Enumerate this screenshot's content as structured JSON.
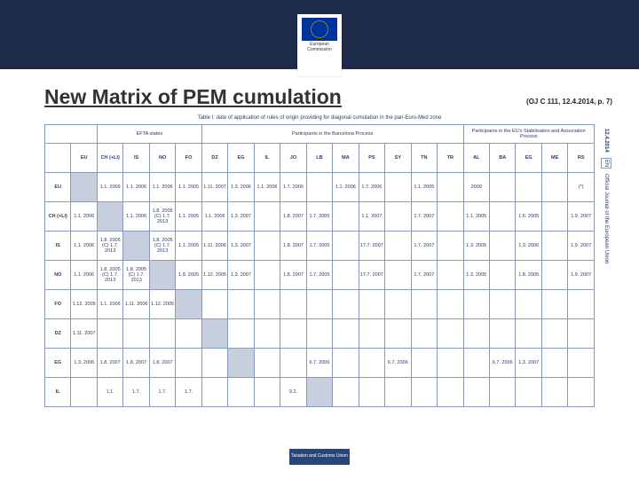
{
  "header": {
    "logo_line1": "European",
    "logo_line2": "Commission",
    "banner_bg": "#1e2a4a"
  },
  "title": {
    "text": "New Matrix of PEM cumulation",
    "reference": "(OJ C 111, 12.4.2014, p. 7)"
  },
  "caption": "Table I: date of application of rules of origin providing for diagonal cumulation in the pan-Euro-Med zone",
  "groups": {
    "g1": "EFTA states",
    "g2": "Participants in the Barcelona Process",
    "g3": "Participants in the EU's Stabilisation and Association Process"
  },
  "side": {
    "date": "12.4.2014",
    "box": "EN",
    "journal": "Official Journal of the European Union"
  },
  "columns": [
    "",
    "EU",
    "CH (+LI)",
    "IS",
    "NO",
    "FO",
    "DZ",
    "EG",
    "IL",
    "JO",
    "LB",
    "MA",
    "PS",
    "SY",
    "TN",
    "TR",
    "AL",
    "BA",
    "EG",
    "ME",
    "RS"
  ],
  "rows": [
    {
      "head": "EU",
      "cells": [
        "shade",
        "1.1. 2006",
        "1.1. 2006",
        "1.1. 2006",
        "1.1. 2005",
        "1.11. 2007",
        "1.3. 2006",
        "1.1. 2006",
        "1.7. 2006",
        "",
        "1.1. 2006",
        "1.7. 2006",
        "",
        "1.1. 2005",
        "",
        "2009",
        "",
        "",
        "",
        "(*)",
        ""
      ]
    },
    {
      "head": "CH (+LI)",
      "cells": [
        "1.1. 2006",
        "shade",
        "1.1. 2006",
        "1.8. 2005 (C) 1.7. 2013",
        "1.1. 2005",
        "1.1. 2006",
        "1.3. 2007",
        "",
        "1.8. 2007",
        "1.7. 2005",
        "",
        "1.1. 2007",
        "",
        "1.7. 2007",
        "",
        "1.1. 2005",
        "",
        "1.6. 2005",
        "",
        "1.9. 2007",
        "",
        "",
        "(C) 1.5. 2012"
      ]
    },
    {
      "head": "IS",
      "cells": [
        "1.1. 2006",
        "1.8. 2005 (C) 1.7. 2013",
        "shade",
        "1.8. 2005 (C) 1.7. 2013",
        "1.1. 2005",
        "1.11. 2006",
        "1.3. 2007",
        "",
        "1.8. 2007",
        "1.7. 2005",
        "",
        "17.7. 2007",
        "",
        "1.7. 2007",
        "",
        "1.3. 2005",
        "",
        "1.3. 2006",
        "",
        "1.9. 2007",
        "",
        "",
        "(C) 1.10. 2013"
      ]
    },
    {
      "head": "NO",
      "cells": [
        "1.1. 2006",
        "1.8. 2005 (C) 1.7. 2013",
        "1.8. 2005 (C) 1.7. 2013",
        "shade",
        "1.8. 2005",
        "1.12. 2005",
        "1.3. 2007",
        "",
        "1.8. 2007",
        "1.7. 2005",
        "",
        "17.7. 2007",
        "",
        "1.7. 2007",
        "",
        "1.3. 2005",
        "",
        "1.8. 2005",
        "",
        "1.9. 2007",
        "",
        "",
        "(C) 1.6. 2013"
      ]
    },
    {
      "head": "FO",
      "cells": [
        "1.12. 2005",
        "1.1. 2006",
        "1.11. 2006",
        "1.12. 2005",
        "shade",
        "",
        "",
        "",
        "",
        "",
        "",
        "",
        "",
        "",
        "",
        "",
        "",
        "",
        "",
        ""
      ]
    },
    {
      "head": "DZ",
      "cells": [
        "1.11. 2007",
        "",
        "",
        "",
        "",
        "shade",
        "",
        "",
        "",
        "",
        "",
        "",
        "",
        "",
        "",
        "",
        "",
        "",
        "",
        ""
      ]
    },
    {
      "head": "EG",
      "cells": [
        "1.3. 2006",
        "1.8. 2007",
        "1.8. 2007",
        "1.8. 2007",
        "",
        "",
        "shade",
        "",
        "",
        "6.7. 2006",
        "",
        "",
        "6.7. 2006",
        "",
        "",
        "",
        "6.7. 2006",
        "1.3. 2007",
        "",
        "",
        ""
      ]
    },
    {
      "head": "IL",
      "cells": [
        "",
        "1.1.",
        "1.7.",
        "1.7.",
        "1.7.",
        "",
        "",
        "",
        "9.2.",
        "shade",
        "",
        "",
        "",
        "",
        "",
        "",
        "",
        "",
        "",
        "",
        ""
      ]
    }
  ],
  "footer": {
    "label": "Taxation and Customs Union"
  },
  "colors": {
    "banner": "#1e2a4a",
    "shade": "#c7cedd",
    "ink": "#2a3a66",
    "badge": "#28457a"
  }
}
